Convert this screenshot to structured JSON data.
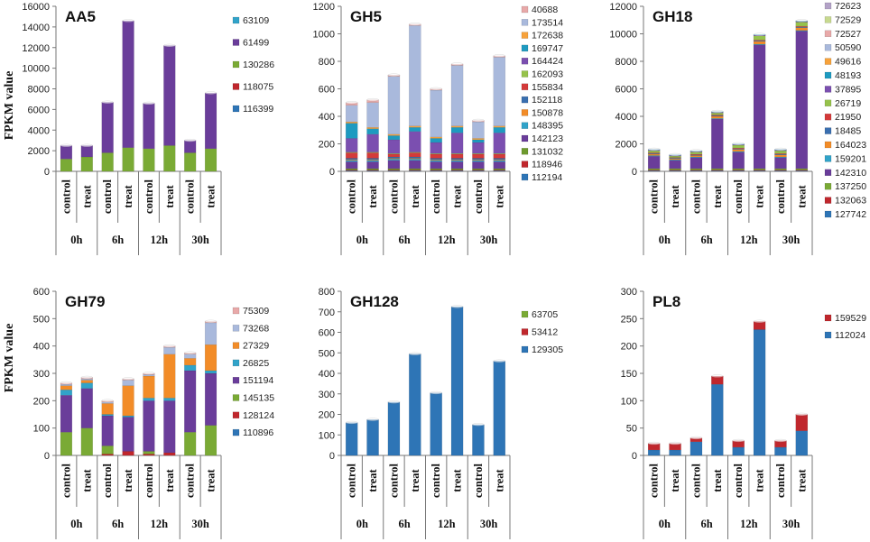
{
  "y_axis_label": "FPKM value",
  "chart_data": [
    {
      "type": "bar",
      "stacked": true,
      "title": "AA5",
      "categories": [
        "control",
        "treat",
        "control",
        "treat",
        "control",
        "treat",
        "control",
        "treat"
      ],
      "groups": [
        "0h",
        "6h",
        "12h",
        "30h"
      ],
      "ylabel": "FPKM value",
      "ylim": [
        0,
        16000
      ],
      "yticks": [
        0,
        2000,
        4000,
        6000,
        8000,
        10000,
        12000,
        14000,
        16000
      ],
      "series": [
        {
          "name": "116399",
          "color": "#2E75B6",
          "values": [
            0,
            0,
            0,
            0,
            0,
            0,
            0,
            0
          ]
        },
        {
          "name": "118075",
          "color": "#C0272D",
          "values": [
            0,
            0,
            0,
            0,
            0,
            0,
            0,
            0
          ]
        },
        {
          "name": "130286",
          "color": "#7AAA35",
          "values": [
            1200,
            1400,
            1800,
            2300,
            2200,
            2500,
            1800,
            2200
          ]
        },
        {
          "name": "61499",
          "color": "#6A3D9A",
          "values": [
            1300,
            1100,
            4900,
            12300,
            4400,
            9700,
            1200,
            5400
          ]
        },
        {
          "name": "63109",
          "color": "#31A3C9",
          "values": [
            0,
            0,
            0,
            0,
            0,
            0,
            0,
            0
          ]
        }
      ]
    },
    {
      "type": "bar",
      "stacked": true,
      "title": "GH5",
      "categories": [
        "control",
        "treat",
        "control",
        "treat",
        "control",
        "treat",
        "control",
        "treat"
      ],
      "groups": [
        "0h",
        "6h",
        "12h",
        "30h"
      ],
      "ylabel": "FPKM value",
      "ylim": [
        0,
        1200
      ],
      "yticks": [
        0,
        200,
        400,
        600,
        800,
        1000,
        1200
      ],
      "series": [
        {
          "name": "112194",
          "color": "#2E75B6",
          "values": [
            5,
            5,
            5,
            5,
            5,
            5,
            5,
            5
          ]
        },
        {
          "name": "118946",
          "color": "#C0272D",
          "values": [
            5,
            5,
            5,
            5,
            5,
            5,
            5,
            5
          ]
        },
        {
          "name": "131032",
          "color": "#6E9A2E",
          "values": [
            10,
            10,
            10,
            10,
            10,
            10,
            10,
            10
          ]
        },
        {
          "name": "142123",
          "color": "#6A3D9A",
          "values": [
            50,
            50,
            60,
            60,
            50,
            50,
            50,
            50
          ]
        },
        {
          "name": "148395",
          "color": "#31A3C9",
          "values": [
            10,
            10,
            10,
            10,
            10,
            10,
            10,
            10
          ]
        },
        {
          "name": "150878",
          "color": "#F28C28",
          "values": [
            5,
            5,
            5,
            5,
            5,
            5,
            5,
            5
          ]
        },
        {
          "name": "152118",
          "color": "#3A6FB0",
          "values": [
            10,
            10,
            10,
            10,
            10,
            10,
            10,
            10
          ]
        },
        {
          "name": "155834",
          "color": "#D43A3A",
          "values": [
            40,
            40,
            20,
            30,
            30,
            30,
            30,
            30
          ]
        },
        {
          "name": "162093",
          "color": "#96C24B",
          "values": [
            5,
            5,
            5,
            5,
            5,
            5,
            5,
            5
          ]
        },
        {
          "name": "164424",
          "color": "#7B4FB0",
          "values": [
            100,
            130,
            100,
            150,
            80,
            150,
            80,
            150
          ]
        },
        {
          "name": "169747",
          "color": "#1E9AC0",
          "values": [
            110,
            40,
            30,
            30,
            30,
            40,
            20,
            40
          ]
        },
        {
          "name": "172638",
          "color": "#F7A23B",
          "values": [
            10,
            10,
            10,
            10,
            10,
            10,
            10,
            10
          ]
        },
        {
          "name": "173514",
          "color": "#A9B9DC",
          "values": [
            120,
            180,
            420,
            730,
            340,
            440,
            120,
            500
          ]
        },
        {
          "name": "40688",
          "color": "#E8A9A9",
          "values": [
            20,
            20,
            10,
            10,
            10,
            10,
            10,
            10
          ]
        }
      ]
    },
    {
      "type": "bar",
      "stacked": true,
      "title": "GH18",
      "categories": [
        "control",
        "treat",
        "control",
        "treat",
        "control",
        "treat",
        "control",
        "treat"
      ],
      "groups": [
        "0h",
        "6h",
        "12h",
        "30h"
      ],
      "ylabel": "FPKM value",
      "ylim": [
        0,
        12000
      ],
      "yticks": [
        0,
        2000,
        4000,
        6000,
        8000,
        10000,
        12000
      ],
      "series": [
        {
          "name": "127742",
          "color": "#2E75B6",
          "values": [
            50,
            50,
            50,
            50,
            50,
            50,
            50,
            50
          ]
        },
        {
          "name": "132063",
          "color": "#C0272D",
          "values": [
            50,
            50,
            50,
            50,
            50,
            50,
            50,
            50
          ]
        },
        {
          "name": "137250",
          "color": "#7AAA35",
          "values": [
            100,
            100,
            100,
            100,
            100,
            100,
            100,
            100
          ]
        },
        {
          "name": "142310",
          "color": "#6A3D9A",
          "values": [
            900,
            600,
            800,
            3600,
            1200,
            9000,
            800,
            10000
          ]
        },
        {
          "name": "159201",
          "color": "#31A3C9",
          "values": [
            50,
            50,
            50,
            50,
            50,
            50,
            50,
            50
          ]
        },
        {
          "name": "164023",
          "color": "#F28C28",
          "values": [
            100,
            80,
            100,
            150,
            150,
            200,
            150,
            200
          ]
        },
        {
          "name": "18485",
          "color": "#3A6FB0",
          "values": [
            50,
            50,
            50,
            50,
            50,
            50,
            50,
            50
          ]
        },
        {
          "name": "21950",
          "color": "#D43A3A",
          "values": [
            50,
            30,
            50,
            50,
            50,
            50,
            50,
            50
          ]
        },
        {
          "name": "26719",
          "color": "#96C24B",
          "values": [
            150,
            100,
            150,
            150,
            200,
            300,
            200,
            300
          ]
        },
        {
          "name": "37895",
          "color": "#7B4FB0",
          "values": [
            50,
            50,
            50,
            50,
            50,
            50,
            50,
            50
          ]
        },
        {
          "name": "48193",
          "color": "#1E9AC0",
          "values": [
            50,
            50,
            50,
            50,
            50,
            50,
            50,
            50
          ]
        },
        {
          "name": "49616",
          "color": "#F7A23B",
          "values": [
            0,
            0,
            0,
            0,
            0,
            0,
            0,
            0
          ]
        },
        {
          "name": "50590",
          "color": "#A9B9DC",
          "values": [
            0,
            0,
            0,
            0,
            0,
            0,
            0,
            0
          ]
        },
        {
          "name": "72527",
          "color": "#E8A9A9",
          "values": [
            0,
            0,
            0,
            0,
            0,
            0,
            0,
            0
          ]
        },
        {
          "name": "72529",
          "color": "#C7D98F",
          "values": [
            0,
            0,
            0,
            0,
            0,
            0,
            0,
            0
          ]
        },
        {
          "name": "72623",
          "color": "#B3A2C7",
          "values": [
            0,
            0,
            0,
            0,
            0,
            0,
            0,
            0
          ]
        }
      ]
    },
    {
      "type": "bar",
      "stacked": true,
      "title": "GH79",
      "categories": [
        "control",
        "treat",
        "control",
        "treat",
        "control",
        "treat",
        "control",
        "treat"
      ],
      "groups": [
        "0h",
        "6h",
        "12h",
        "30h"
      ],
      "ylabel": "FPKM value",
      "ylim": [
        0,
        600
      ],
      "yticks": [
        0,
        100,
        200,
        300,
        400,
        500,
        600
      ],
      "series": [
        {
          "name": "110896",
          "color": "#2E75B6",
          "values": [
            0,
            0,
            0,
            0,
            0,
            0,
            0,
            0
          ]
        },
        {
          "name": "128124",
          "color": "#C0272D",
          "values": [
            0,
            0,
            5,
            15,
            5,
            10,
            0,
            0
          ]
        },
        {
          "name": "145135",
          "color": "#7AAA35",
          "values": [
            85,
            100,
            30,
            0,
            10,
            0,
            85,
            110
          ]
        },
        {
          "name": "151194",
          "color": "#6A3D9A",
          "values": [
            135,
            145,
            110,
            125,
            185,
            190,
            225,
            190
          ]
        },
        {
          "name": "26825",
          "color": "#31A3C9",
          "values": [
            20,
            20,
            5,
            5,
            10,
            10,
            20,
            10
          ]
        },
        {
          "name": "27329",
          "color": "#F28C28",
          "values": [
            15,
            10,
            40,
            110,
            80,
            160,
            25,
            95
          ]
        },
        {
          "name": "73268",
          "color": "#A9B9DC",
          "values": [
            5,
            5,
            5,
            20,
            5,
            25,
            15,
            80
          ]
        },
        {
          "name": "75309",
          "color": "#E8A9A9",
          "values": [
            5,
            5,
            5,
            5,
            5,
            5,
            5,
            5
          ]
        }
      ]
    },
    {
      "type": "bar",
      "stacked": true,
      "title": "GH128",
      "categories": [
        "control",
        "treat",
        "control",
        "treat",
        "control",
        "treat",
        "control",
        "treat"
      ],
      "groups": [
        "0h",
        "6h",
        "12h",
        "30h"
      ],
      "ylabel": "",
      "ylim": [
        0,
        800
      ],
      "yticks": [
        0,
        100,
        200,
        300,
        400,
        500,
        600,
        700,
        800
      ],
      "series": [
        {
          "name": "129305",
          "color": "#2E75B6",
          "values": [
            160,
            175,
            260,
            495,
            305,
            725,
            150,
            460
          ]
        },
        {
          "name": "53412",
          "color": "#C0272D",
          "values": [
            0,
            0,
            0,
            0,
            0,
            0,
            0,
            0
          ]
        },
        {
          "name": "63705",
          "color": "#7AAA35",
          "values": [
            0,
            0,
            0,
            0,
            0,
            0,
            0,
            0
          ]
        }
      ]
    },
    {
      "type": "bar",
      "stacked": true,
      "title": "PL8",
      "categories": [
        "control",
        "treat",
        "control",
        "treat",
        "control",
        "treat",
        "control",
        "treat"
      ],
      "groups": [
        "0h",
        "6h",
        "12h",
        "30h"
      ],
      "ylabel": "",
      "ylim": [
        0,
        300
      ],
      "yticks": [
        0,
        50,
        100,
        150,
        200,
        250,
        300
      ],
      "series": [
        {
          "name": "112024",
          "color": "#2E75B6",
          "values": [
            10,
            10,
            25,
            130,
            15,
            230,
            15,
            45
          ]
        },
        {
          "name": "159529",
          "color": "#C0272D",
          "values": [
            12,
            12,
            7,
            15,
            12,
            15,
            12,
            30
          ]
        }
      ]
    }
  ]
}
